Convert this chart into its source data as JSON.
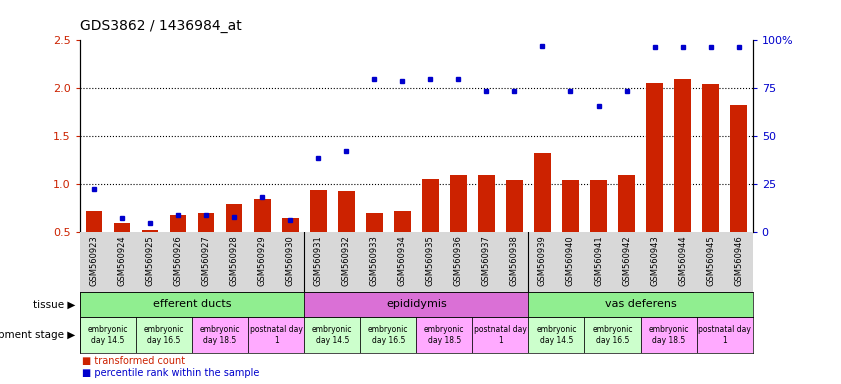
{
  "title": "GDS3862 / 1436984_at",
  "samples": [
    "GSM560923",
    "GSM560924",
    "GSM560925",
    "GSM560926",
    "GSM560927",
    "GSM560928",
    "GSM560929",
    "GSM560930",
    "GSM560931",
    "GSM560932",
    "GSM560933",
    "GSM560934",
    "GSM560935",
    "GSM560936",
    "GSM560937",
    "GSM560938",
    "GSM560939",
    "GSM560940",
    "GSM560941",
    "GSM560942",
    "GSM560943",
    "GSM560944",
    "GSM560945",
    "GSM560946"
  ],
  "red_bars": [
    0.72,
    0.6,
    0.52,
    0.68,
    0.7,
    0.79,
    0.85,
    0.65,
    0.94,
    0.93,
    0.7,
    0.72,
    1.06,
    1.1,
    1.1,
    1.04,
    1.33,
    1.05,
    1.05,
    1.1,
    2.06,
    2.1,
    2.05,
    1.83
  ],
  "blue_dots": [
    0.95,
    0.65,
    0.6,
    0.68,
    0.68,
    0.66,
    0.87,
    0.63,
    1.27,
    1.35,
    2.1,
    2.08,
    2.1,
    2.1,
    1.97,
    1.97,
    2.44,
    1.97,
    1.82,
    1.97,
    2.43,
    2.43,
    2.43,
    2.43
  ],
  "ylim_left": [
    0.5,
    2.5
  ],
  "ylim_right": [
    0,
    100
  ],
  "yticks_left": [
    0.5,
    1.0,
    1.5,
    2.0,
    2.5
  ],
  "yticks_right": [
    0,
    25,
    50,
    75,
    100
  ],
  "ytick_labels_right": [
    "0",
    "25",
    "50",
    "75",
    "100%"
  ],
  "gridlines": [
    1.0,
    1.5,
    2.0
  ],
  "tissues": [
    {
      "label": "efferent ducts",
      "start": 0,
      "end": 8,
      "color": "#90EE90"
    },
    {
      "label": "epididymis",
      "start": 8,
      "end": 16,
      "color": "#DA70D6"
    },
    {
      "label": "vas deferens",
      "start": 16,
      "end": 24,
      "color": "#90EE90"
    }
  ],
  "dev_stages": [
    {
      "label": "embryonic\nday 14.5",
      "start": 0,
      "end": 2,
      "color": "#CCFFCC"
    },
    {
      "label": "embryonic\nday 16.5",
      "start": 2,
      "end": 4,
      "color": "#CCFFCC"
    },
    {
      "label": "embryonic\nday 18.5",
      "start": 4,
      "end": 6,
      "color": "#FFAAFF"
    },
    {
      "label": "postnatal day\n1",
      "start": 6,
      "end": 8,
      "color": "#FFAAFF"
    },
    {
      "label": "embryonic\nday 14.5",
      "start": 8,
      "end": 10,
      "color": "#CCFFCC"
    },
    {
      "label": "embryonic\nday 16.5",
      "start": 10,
      "end": 12,
      "color": "#CCFFCC"
    },
    {
      "label": "embryonic\nday 18.5",
      "start": 12,
      "end": 14,
      "color": "#FFAAFF"
    },
    {
      "label": "postnatal day\n1",
      "start": 14,
      "end": 16,
      "color": "#FFAAFF"
    },
    {
      "label": "embryonic\nday 14.5",
      "start": 16,
      "end": 18,
      "color": "#CCFFCC"
    },
    {
      "label": "embryonic\nday 16.5",
      "start": 18,
      "end": 20,
      "color": "#CCFFCC"
    },
    {
      "label": "embryonic\nday 18.5",
      "start": 20,
      "end": 22,
      "color": "#FFAAFF"
    },
    {
      "label": "postnatal day\n1",
      "start": 22,
      "end": 24,
      "color": "#FFAAFF"
    }
  ],
  "bar_color": "#CC2200",
  "dot_color": "#0000CC",
  "legend_bar": "transformed count",
  "legend_dot": "percentile rank within the sample",
  "tissue_label": "tissue",
  "dev_label": "development stage",
  "xtick_bg": "#D8D8D8"
}
